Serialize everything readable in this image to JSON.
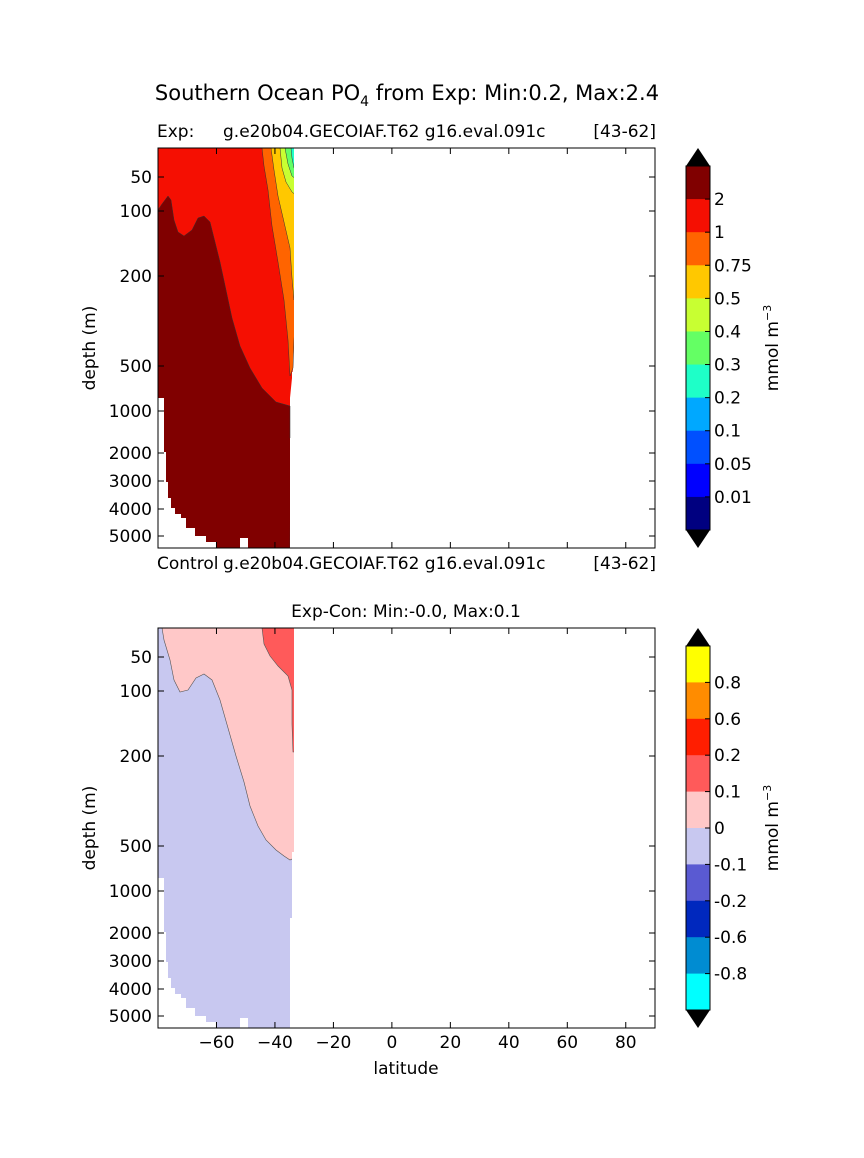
{
  "figure": {
    "suptitle_main": "Southern Ocean PO",
    "suptitle_sub": "4",
    "suptitle_rest": " from Exp: Min:0.2, Max:2.4"
  },
  "panels": {
    "top": {
      "title_left": "Exp:",
      "title_center": "g.e20b04.GECOIAF.T62 g16.eval.091c",
      "title_right": "[43-62]",
      "ylabel": "depth (m)"
    },
    "bottom_header": {
      "title_left": "Control",
      "title_center": "g.e20b04.GECOIAF.T62 g16.eval.091c",
      "title_right": "[43-62]"
    },
    "bottom": {
      "title": "Exp-Con: Min:-0.0, Max:0.1",
      "ylabel": "depth (m)",
      "xlabel": "latitude"
    }
  },
  "chart_data": [
    {
      "type": "contourf",
      "panel": "top",
      "title": "Exp:",
      "ylabel": "depth (m)",
      "xlim": [
        -80,
        90
      ],
      "yticks": [
        "50",
        "100",
        "200",
        "500",
        "1000",
        "2000",
        "3000",
        "4000",
        "5000"
      ],
      "colorbar": {
        "label": "mmol m",
        "label_exp": "−3",
        "ticks": [
          "2",
          "1",
          "0.75",
          "0.5",
          "0.4",
          "0.3",
          "0.2",
          "0.1",
          "0.05",
          "0.01"
        ],
        "bands": [
          "#800000",
          "#f50f02",
          "#ff6400",
          "#ffc800",
          "#c8ff32",
          "#64ff64",
          "#1effc8",
          "#00a8ff",
          "#0050ff",
          "#0000ff",
          "#000080"
        ],
        "extend": "both",
        "over_color": "#000000",
        "under_color": "#000000"
      },
      "regions": [
        {
          "level": "> 2",
          "color": "#800000",
          "lat_range": [
            -80,
            -34
          ],
          "depth_range": [
            100,
            5000
          ]
        },
        {
          "level": "1 - 2",
          "color": "#f50f02",
          "lat_range": [
            -80,
            -34
          ],
          "depth_range": [
            0,
            900
          ]
        },
        {
          "level": "0.75 - 1",
          "color": "#ff6400",
          "lat_range": [
            -45,
            -33
          ],
          "depth_range": [
            0,
            600
          ]
        },
        {
          "level": "0.5 - 0.75",
          "color": "#ffc800",
          "lat_range": [
            -38,
            -33
          ],
          "depth_range": [
            0,
            300
          ]
        },
        {
          "level": "0.4 - 0.5",
          "color": "#c8ff32",
          "lat_range": [
            -38,
            -33
          ],
          "depth_range": [
            0,
            60
          ]
        },
        {
          "level": "0.2 - 0.4",
          "color": "#1effc8",
          "lat_range": [
            -35,
            -33
          ],
          "depth_range": [
            0,
            40
          ]
        }
      ]
    },
    {
      "type": "contourf",
      "panel": "bottom",
      "title": "Exp-Con: Min:-0.0, Max:0.1",
      "xlabel": "latitude",
      "ylabel": "depth (m)",
      "xlim": [
        -80,
        90
      ],
      "xticks": [
        "−60",
        "−40",
        "−20",
        "0",
        "20",
        "40",
        "60",
        "80"
      ],
      "yticks": [
        "50",
        "100",
        "200",
        "500",
        "1000",
        "2000",
        "3000",
        "4000",
        "5000"
      ],
      "colorbar": {
        "label": "mmol m",
        "label_exp": "−3",
        "ticks": [
          "0.8",
          "0.6",
          "0.2",
          "0.1",
          "0",
          "-0.1",
          "-0.2",
          "-0.6",
          "-0.8"
        ],
        "bands": [
          "#ffff00",
          "#ff8c00",
          "#ff1e00",
          "#ff5a5a",
          "#ffc8c8",
          "#c8c8f0",
          "#5a5ad2",
          "#0028be",
          "#008cd2",
          "#00ffff"
        ],
        "extend": "both",
        "over_color": "#000000",
        "under_color": "#000000"
      },
      "regions": [
        {
          "level": "-0.1 - 0",
          "color": "#c8c8f0",
          "lat_range": [
            -80,
            -34
          ],
          "depth_range": [
            50,
            5000
          ]
        },
        {
          "level": "0 - 0.1",
          "color": "#ffc8c8",
          "lat_range": [
            -78,
            -33
          ],
          "depth_range": [
            0,
            600
          ]
        },
        {
          "level": "0.1 - 0.2",
          "color": "#ff5a5a",
          "lat_range": [
            -45,
            -33
          ],
          "depth_range": [
            0,
            150
          ]
        }
      ]
    }
  ]
}
